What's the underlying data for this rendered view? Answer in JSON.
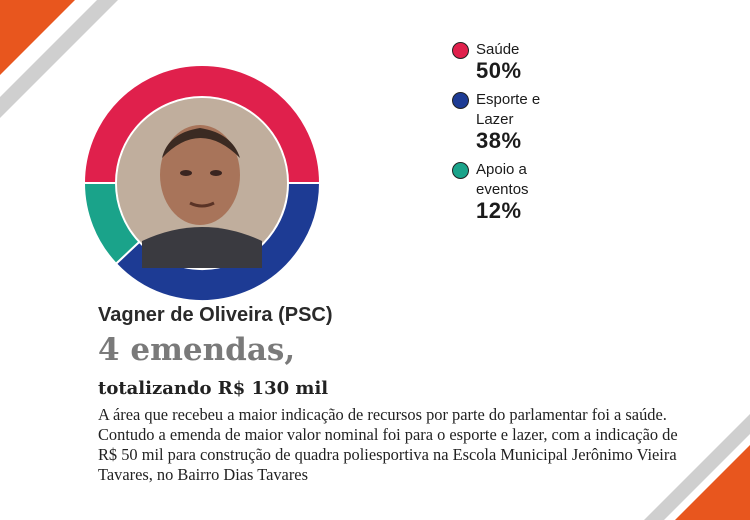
{
  "chart_data": {
    "type": "pie",
    "slices": [
      {
        "label": "Saúde",
        "value": 50,
        "display": "50%",
        "color": "#e0204c"
      },
      {
        "label": "Esporte e Lazer",
        "value": 38,
        "display": "38%",
        "color": "#1d3b94"
      },
      {
        "label": "Apoio a eventos",
        "value": 12,
        "display": "12%",
        "color": "#1aa38a"
      }
    ],
    "legend_position": "right"
  },
  "legend": {
    "items": [
      {
        "label": "Saúde",
        "value": "50%",
        "color": "#e0204c"
      },
      {
        "label": "Esporte e Lazer",
        "value": "38%",
        "color": "#1d3b94"
      },
      {
        "label": "Apoio a eventos",
        "value": "12%",
        "color": "#1aa38a"
      }
    ]
  },
  "profile": {
    "name": "Vagner de Oliveira (PSC)",
    "count": "4 emendas,",
    "total": "totalizando R$ 130 mil",
    "description": "A área que recebeu a maior indicação de recursos por parte do parlamentar foi a saúde. Contudo a emenda de maior valor nominal foi para o esporte e lazer, com a indicação de R$ 50 mil para construção de quadra poliesportiva na Escola Municipal Jerônimo Vieira Tavares, no Bairro Dias Tavares"
  },
  "colors": {
    "accent_orange": "#e8561e",
    "stripe_gray": "#cfcfcf"
  }
}
